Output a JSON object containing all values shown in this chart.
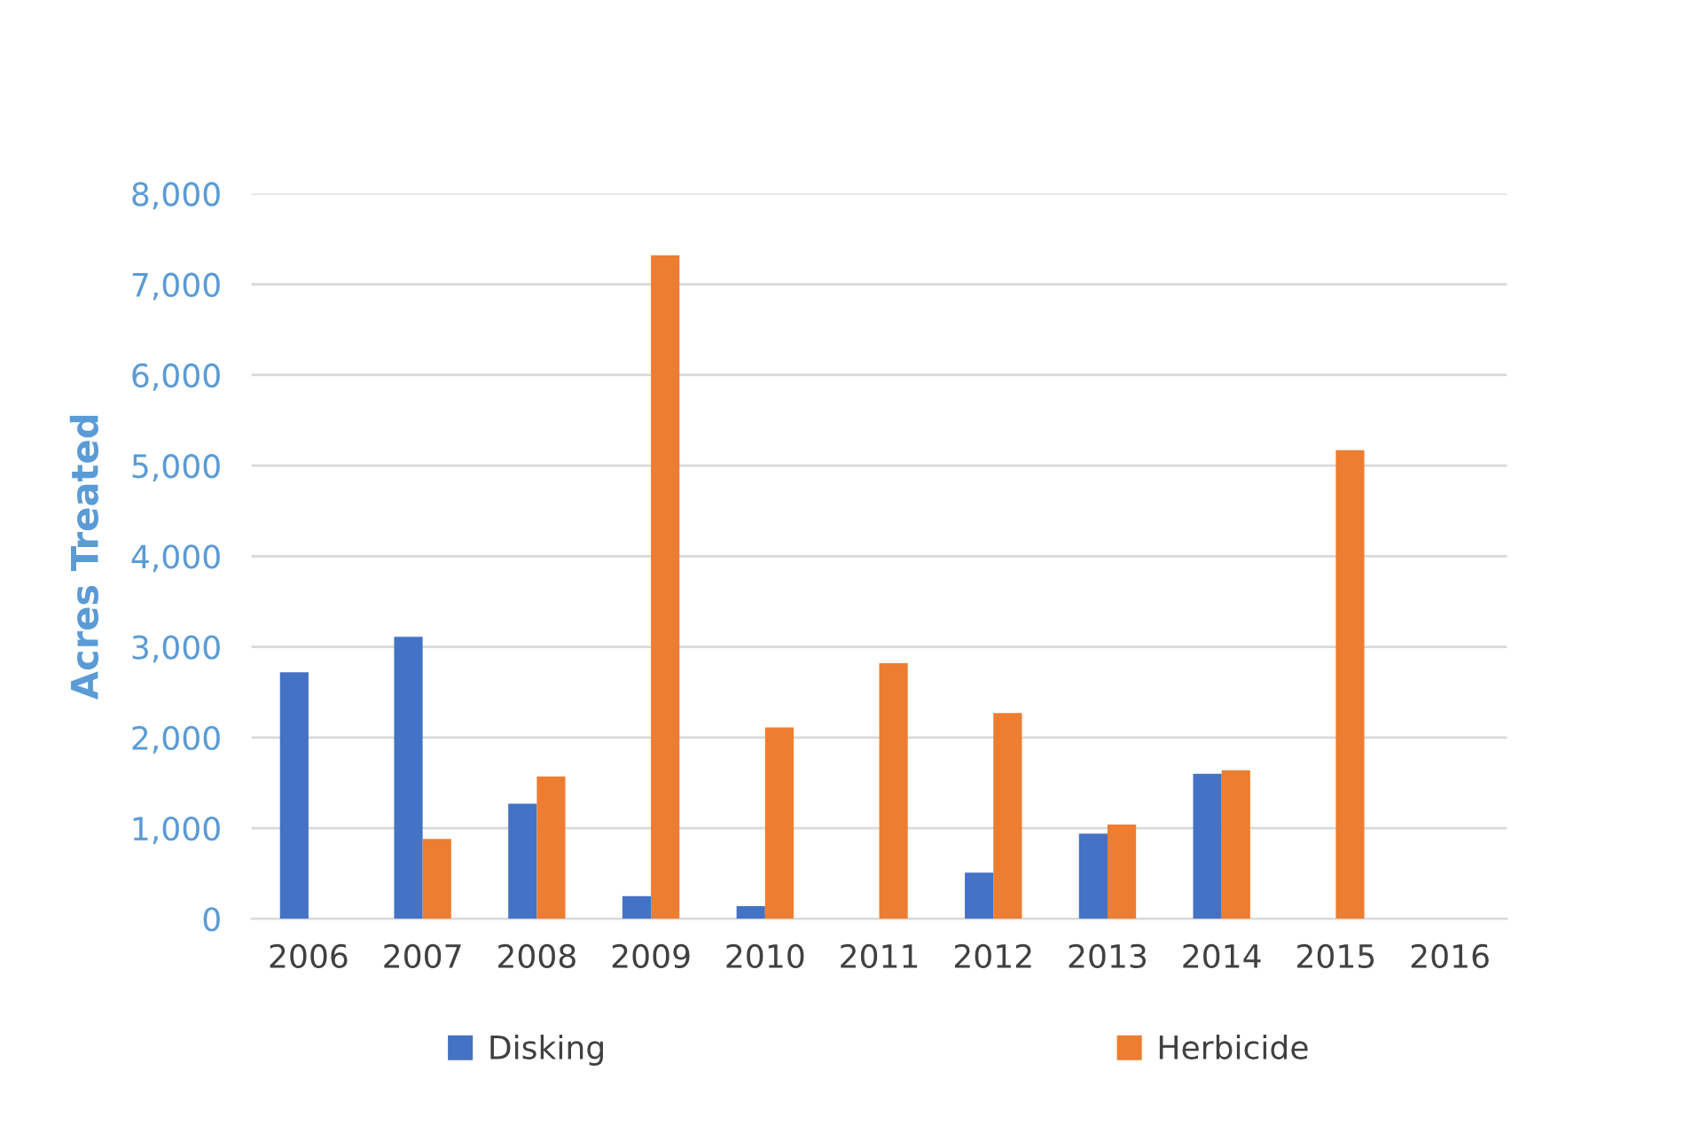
{
  "chart_data": {
    "type": "bar",
    "ylabel": "Acres Treated",
    "categories": [
      "2006",
      "2007",
      "2008",
      "2009",
      "2010",
      "2011",
      "2012",
      "2013",
      "2014",
      "2015",
      "2016"
    ],
    "series": [
      {
        "name": "Disking",
        "color": "#4472c4",
        "values": [
          2720,
          3110,
          1270,
          250,
          140,
          0,
          510,
          940,
          1600,
          0,
          0
        ]
      },
      {
        "name": "Herbicide",
        "color": "#ed7d31",
        "values": [
          0,
          880,
          1570,
          7320,
          2110,
          2820,
          2270,
          1040,
          1640,
          5170,
          0
        ]
      }
    ],
    "ylim": [
      0,
      8000
    ],
    "yticks": [
      {
        "value": 0,
        "label": "0"
      },
      {
        "value": 1000,
        "label": "1,000"
      },
      {
        "value": 2000,
        "label": "2,000"
      },
      {
        "value": 3000,
        "label": "3,000"
      },
      {
        "value": 4000,
        "label": "4,000"
      },
      {
        "value": 5000,
        "label": "5,000"
      },
      {
        "value": 6000,
        "label": "6,000"
      },
      {
        "value": 7000,
        "label": "7,000"
      },
      {
        "value": 8000,
        "label": "8,000"
      }
    ],
    "grid": "y",
    "legend": "bottom"
  }
}
